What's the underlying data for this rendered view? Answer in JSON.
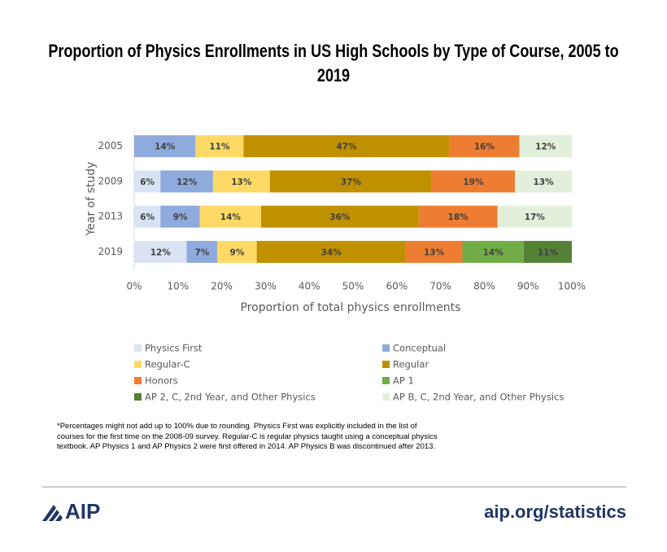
{
  "chart_data": {
    "type": "stacked-bar-horizontal",
    "title": "Proportion of Physics Enrollments in US High Schools by Type of Course, 2005 to 2019",
    "categories": [
      "2005",
      "2009",
      "2013",
      "2019"
    ],
    "series": [
      {
        "name": "Physics First",
        "color": "#dae3f3",
        "values": [
          null,
          6,
          6,
          12
        ],
        "value_labels": [
          null,
          "6%",
          "6%",
          "12%"
        ]
      },
      {
        "name": "Conceptual",
        "color": "#8faadc",
        "values": [
          14,
          12,
          9,
          7
        ],
        "value_labels": [
          "14%",
          "12%",
          "9%",
          "7%"
        ]
      },
      {
        "name": "Regular-C",
        "color": "#ffd966",
        "values": [
          11,
          13,
          14,
          9
        ],
        "value_labels": [
          "11%",
          "13%",
          "14%",
          "9%"
        ]
      },
      {
        "name": "Regular",
        "color": "#bf9000",
        "values": [
          47,
          37,
          36,
          34
        ],
        "value_labels": [
          "47%",
          "37%",
          "36%",
          "34%"
        ]
      },
      {
        "name": "Honors",
        "color": "#ed7d31",
        "values": [
          16,
          19,
          18,
          13
        ],
        "value_labels": [
          "16%",
          "19%",
          "18%",
          "13%"
        ]
      },
      {
        "name": "AP 1",
        "color": "#70ad47",
        "values": [
          null,
          null,
          null,
          14
        ],
        "value_labels": [
          null,
          null,
          null,
          "14%"
        ]
      },
      {
        "name": "AP 2, C, 2nd Year, and Other Physics",
        "color": "#548235",
        "values": [
          null,
          null,
          null,
          11
        ],
        "value_labels": [
          null,
          null,
          null,
          "11%"
        ]
      },
      {
        "name": "AP B, C, 2nd Year, and Other Physics",
        "color": "#e2efda",
        "values": [
          12,
          13,
          17,
          null
        ],
        "value_labels": [
          "12%",
          "13%",
          "17%",
          null
        ]
      }
    ],
    "xlim": [
      0,
      100
    ],
    "xticks": [
      {
        "value": 0,
        "label": "0%"
      },
      {
        "value": 10,
        "label": "10%"
      },
      {
        "value": 20,
        "label": "20%"
      },
      {
        "value": 30,
        "label": "30%"
      },
      {
        "value": 40,
        "label": "40%"
      },
      {
        "value": 50,
        "label": "50%"
      },
      {
        "value": 60,
        "label": "60%"
      },
      {
        "value": 70,
        "label": "70%"
      },
      {
        "value": 80,
        "label": "80%"
      },
      {
        "value": 90,
        "label": "90%"
      },
      {
        "value": 100,
        "label": "100%"
      }
    ],
    "xlabel": "Proportion of total physics enrollments",
    "ylabel": "Year of study",
    "grid": false,
    "legend": "bottom"
  },
  "footnote": "*Percentages might not add up to 100% due to rounding. Physics First was explicitly included in the list of courses for the first time on the 2008-09 survey. Regular-C is regular physics taught using a conceptual physics textbook. AP Physics 1 and AP Physics 2 were first offered in 2014. AP Physics B was discontinued after 2013.",
  "footer": {
    "logo": "AIP",
    "url": "aip.org/statistics"
  }
}
